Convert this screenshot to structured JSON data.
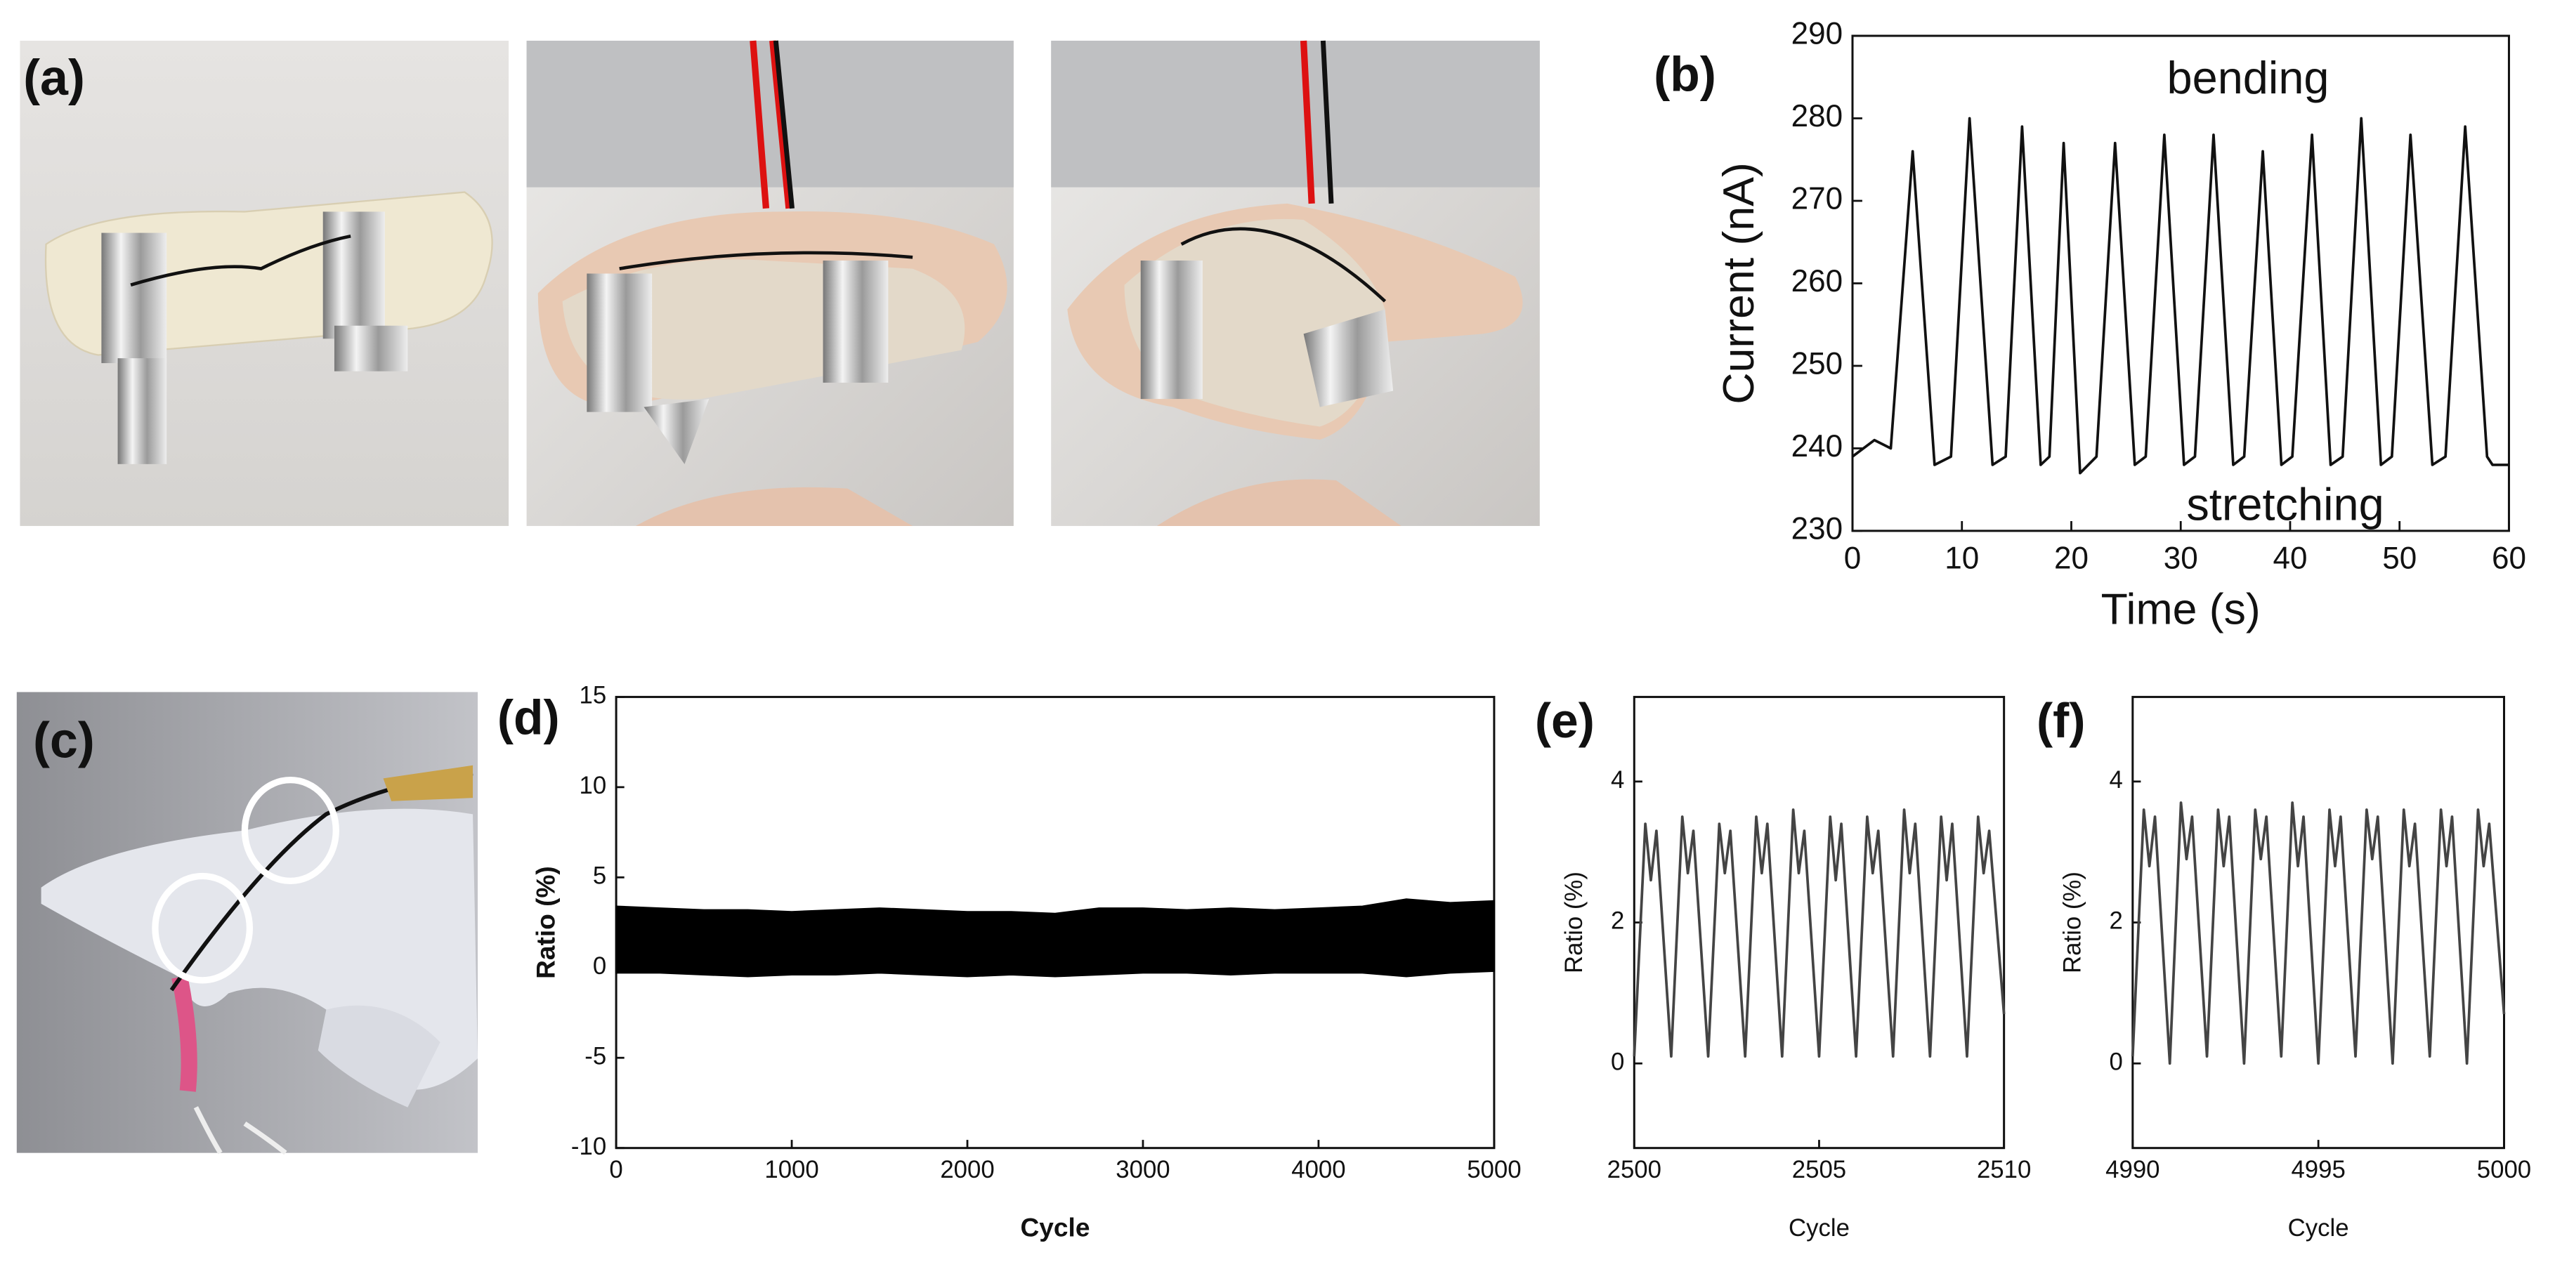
{
  "photo_labels": [
    "(a)",
    "(c)"
  ],
  "chart_data": [
    {
      "type": "line",
      "label": "(b)",
      "xlabel": "Time (s)",
      "ylabel": "Current (nA)",
      "annotations": [
        {
          "text": "bending",
          "color": "#1f7bc6"
        },
        {
          "text": "stretching",
          "color": "#d3141c"
        }
      ],
      "color": "#111111",
      "x": [
        0,
        1,
        2,
        3.5,
        5.5,
        7.5,
        9,
        10.7,
        12.8,
        14,
        15.5,
        17.2,
        18,
        19.3,
        20.8,
        22.3,
        24,
        25.8,
        26.8,
        28.5,
        30.3,
        31.3,
        33,
        34.8,
        35.8,
        37.5,
        39.2,
        40.2,
        42,
        43.7,
        44.8,
        46.5,
        48.3,
        49.3,
        51,
        53,
        54.2,
        56,
        58,
        58.5,
        60
      ],
      "values": [
        239,
        240,
        241,
        240,
        276,
        238,
        239,
        280,
        238,
        239,
        279,
        238,
        239,
        277,
        237,
        239,
        277,
        238,
        239,
        278,
        238,
        239,
        278,
        238,
        239,
        276,
        238,
        239,
        278,
        238,
        239,
        280,
        238,
        239,
        278,
        238,
        239,
        279,
        239,
        238,
        238
      ],
      "xlim": [
        0,
        60
      ],
      "ylim": [
        230,
        290
      ],
      "xticks": [
        0,
        10,
        20,
        30,
        40,
        50,
        60
      ],
      "yticks": [
        230,
        240,
        250,
        260,
        270,
        280,
        290
      ]
    },
    {
      "type": "band",
      "label": "(d)",
      "xlabel": "Cycle",
      "ylabel": "Ratio (%)",
      "color": "#000000",
      "x": [
        0,
        250,
        500,
        750,
        1000,
        1250,
        1500,
        1750,
        2000,
        2250,
        2500,
        2750,
        3000,
        3250,
        3500,
        3750,
        4000,
        4250,
        4500,
        4750,
        5000
      ],
      "high": [
        3.4,
        3.3,
        3.2,
        3.2,
        3.1,
        3.2,
        3.3,
        3.2,
        3.1,
        3.1,
        3.0,
        3.3,
        3.3,
        3.2,
        3.3,
        3.2,
        3.3,
        3.4,
        3.8,
        3.6,
        3.7
      ],
      "low": [
        -0.3,
        -0.3,
        -0.4,
        -0.5,
        -0.4,
        -0.4,
        -0.3,
        -0.4,
        -0.5,
        -0.4,
        -0.5,
        -0.4,
        -0.3,
        -0.3,
        -0.4,
        -0.3,
        -0.3,
        -0.3,
        -0.5,
        -0.3,
        -0.2
      ],
      "xlim": [
        0,
        5000
      ],
      "ylim": [
        -10,
        15
      ],
      "xticks": [
        0,
        1000,
        2000,
        3000,
        4000,
        5000
      ],
      "yticks": [
        -10,
        -5,
        0,
        5,
        10,
        15
      ]
    },
    {
      "type": "line",
      "label": "(e)",
      "xlabel": "Cycle",
      "ylabel": "Ratio (%)",
      "color": "#444444",
      "x": [
        2500,
        2500.3,
        2500.45,
        2500.6,
        2501,
        2501.3,
        2501.45,
        2501.6,
        2502,
        2502.3,
        2502.45,
        2502.6,
        2503,
        2503.3,
        2503.45,
        2503.6,
        2504,
        2504.3,
        2504.45,
        2504.6,
        2505,
        2505.3,
        2505.45,
        2505.6,
        2506,
        2506.3,
        2506.45,
        2506.6,
        2507,
        2507.3,
        2507.45,
        2507.6,
        2508,
        2508.3,
        2508.45,
        2508.6,
        2509,
        2509.3,
        2509.45,
        2509.6,
        2510
      ],
      "values": [
        0.1,
        3.4,
        2.6,
        3.3,
        0.1,
        3.5,
        2.7,
        3.3,
        0.1,
        3.4,
        2.7,
        3.3,
        0.1,
        3.5,
        2.7,
        3.4,
        0.1,
        3.6,
        2.7,
        3.3,
        0.1,
        3.5,
        2.6,
        3.4,
        0.1,
        3.5,
        2.7,
        3.3,
        0.1,
        3.6,
        2.7,
        3.4,
        0.1,
        3.5,
        2.6,
        3.4,
        0.1,
        3.5,
        2.7,
        3.3,
        0.7
      ],
      "xlim": [
        2500,
        2510
      ],
      "ylim": [
        -1.2,
        5.2
      ],
      "xticks": [
        2500,
        2505,
        2510
      ],
      "yticks": [
        0,
        2,
        4
      ]
    },
    {
      "type": "line",
      "label": "(f)",
      "xlabel": "Cycle",
      "ylabel": "Ratio (%)",
      "color": "#444444",
      "x": [
        4990,
        4990.3,
        4990.45,
        4990.6,
        4991,
        4991.3,
        4991.45,
        4991.6,
        4992,
        4992.3,
        4992.45,
        4992.6,
        4993,
        4993.3,
        4993.45,
        4993.6,
        4994,
        4994.3,
        4994.45,
        4994.6,
        4995,
        4995.3,
        4995.45,
        4995.6,
        4996,
        4996.3,
        4996.45,
        4996.6,
        4997,
        4997.3,
        4997.45,
        4997.6,
        4998,
        4998.3,
        4998.45,
        4998.6,
        4999,
        4999.3,
        4999.45,
        4999.6,
        5000
      ],
      "values": [
        0.1,
        3.6,
        2.8,
        3.5,
        0.0,
        3.7,
        2.9,
        3.5,
        0.1,
        3.6,
        2.8,
        3.5,
        0.0,
        3.6,
        2.9,
        3.5,
        0.1,
        3.7,
        2.8,
        3.5,
        0.0,
        3.6,
        2.8,
        3.5,
        0.1,
        3.6,
        2.9,
        3.5,
        0.0,
        3.6,
        2.8,
        3.4,
        0.1,
        3.6,
        2.8,
        3.5,
        0.0,
        3.6,
        2.8,
        3.4,
        0.7
      ],
      "xlim": [
        4990,
        5000
      ],
      "ylim": [
        -1.2,
        5.2
      ],
      "xticks": [
        4990,
        4995,
        5000
      ],
      "yticks": [
        0,
        2,
        4
      ]
    }
  ]
}
